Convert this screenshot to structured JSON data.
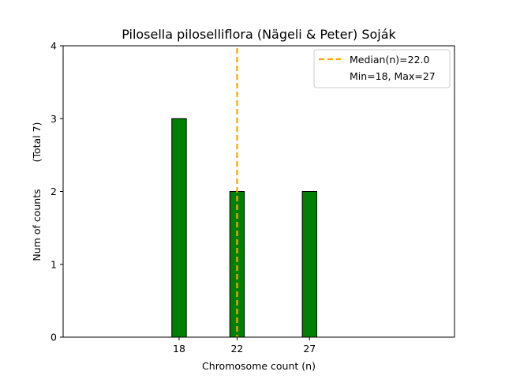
{
  "chart_data": {
    "type": "bar",
    "title": "Pilosella piloselliflora (Nägeli & Peter) Soják",
    "xlabel": "Chromosome count (n)",
    "ylabel": "Num of counts",
    "ylabel_total": "(Total 7)",
    "xlim": [
      10,
      37
    ],
    "ylim": [
      0,
      4
    ],
    "yticks": [
      0,
      1,
      2,
      3,
      4
    ],
    "xticks": [
      18,
      22,
      27
    ],
    "bar_width": 1,
    "bar_color": "#008000",
    "bars": [
      {
        "x": 18,
        "value": 3
      },
      {
        "x": 22,
        "value": 2
      },
      {
        "x": 27,
        "value": 2
      }
    ],
    "baseline_extent": [
      10,
      29
    ],
    "median_line": {
      "x": 22.0,
      "color": "#FFA500",
      "style": "dashed"
    },
    "legend": {
      "placement": "top-right",
      "entries": [
        "Median(n)=22.0",
        "Min=18, Max=27"
      ]
    },
    "grid": false
  }
}
